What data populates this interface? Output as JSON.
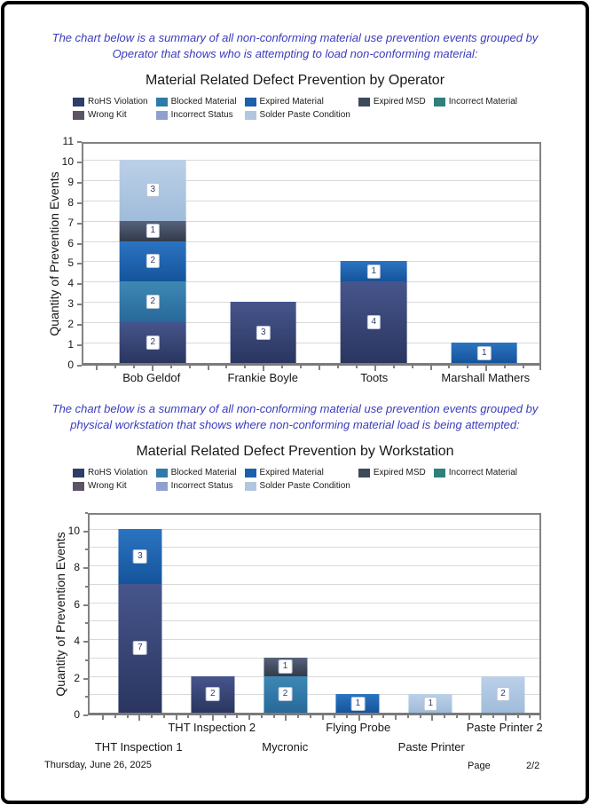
{
  "page": {
    "descriptions": [
      [
        "The chart below is a summary of all non-conforming material use prevention events grouped by",
        "Operator that shows who is attempting to load non-conforming material:"
      ],
      [
        "The chart below is a summary of all non-conforming material use prevention events grouped by",
        "physical workstation that shows where non-conforming material load is being attempted:"
      ]
    ],
    "footer": {
      "date": "Thursday, June 26, 2025",
      "page_label": "Page",
      "page_value": "2/2"
    }
  },
  "legend": [
    {
      "label": "RoHS Violation",
      "color": "#2E3D69"
    },
    {
      "label": "Blocked Material",
      "color": "#2E7AA8"
    },
    {
      "label": "Expired Material",
      "color": "#1C60AC"
    },
    {
      "label": "Expired MSD",
      "color": "#3E495B"
    },
    {
      "label": "Incorrect Material",
      "color": "#2F7F7D"
    },
    {
      "label": "Wrong Kit",
      "color": "#5C5365"
    },
    {
      "label": "Incorrect Status",
      "color": "#8F9FD0"
    },
    {
      "label": "Solder Paste Condition",
      "color": "#B2C6E0"
    }
  ],
  "series_colors": {
    "RoHS Violation": {
      "top": "#46558C",
      "bottom": "#2A3660"
    },
    "Blocked Material": {
      "top": "#3E88B5",
      "bottom": "#27699A"
    },
    "Expired Material": {
      "top": "#2B74C2",
      "bottom": "#15549B"
    },
    "Expired MSD": {
      "top": "#56627A",
      "bottom": "#333B4A"
    },
    "Incorrect Material": {
      "top": "#3A8D8A",
      "bottom": "#266B68"
    },
    "Wrong Kit": {
      "top": "#6A6175",
      "bottom": "#4D4556"
    },
    "Incorrect Status": {
      "top": "#9DACD8",
      "bottom": "#8090C2"
    },
    "Solder Paste Condition": {
      "top": "#BCD0E8",
      "bottom": "#9FBCDA"
    }
  },
  "chart_data": [
    {
      "type": "bar",
      "stacked": true,
      "title": "Material Related Defect Prevention by Operator",
      "ylabel": "Quantity of Prevention Events",
      "xlabel": "",
      "ylim": [
        0,
        11
      ],
      "ytick_label_step": 1,
      "grid": "horizontal, every 1 unit",
      "legend_position": "top",
      "categories": [
        "Bob Geldof",
        "Frankie Boyle",
        "Toots",
        "Marshall Mathers"
      ],
      "series": [
        {
          "name": "RoHS Violation",
          "values": [
            2,
            3,
            4,
            0
          ]
        },
        {
          "name": "Blocked Material",
          "values": [
            2,
            0,
            0,
            0
          ]
        },
        {
          "name": "Expired Material",
          "values": [
            2,
            0,
            1,
            1
          ]
        },
        {
          "name": "Expired MSD",
          "values": [
            1,
            0,
            0,
            0
          ]
        },
        {
          "name": "Solder Paste Condition",
          "values": [
            3,
            0,
            0,
            0
          ]
        }
      ],
      "totals": [
        10,
        3,
        5,
        1
      ],
      "stagger_labels": false
    },
    {
      "type": "bar",
      "stacked": true,
      "title": "Material Related Defect Prevention by Workstation",
      "ylabel": "Quantity of Prevention Events",
      "xlabel": "",
      "ylim": [
        0,
        11
      ],
      "ytick_label_step": 2,
      "grid": "horizontal, every 1 unit",
      "legend_position": "top",
      "categories": [
        "THT Inspection 1",
        "THT Inspection 2",
        "Mycronic",
        "Flying Probe",
        "Paste Printer",
        "Paste Printer 2"
      ],
      "series": [
        {
          "name": "RoHS Violation",
          "values": [
            7,
            2,
            0,
            0,
            0,
            0
          ]
        },
        {
          "name": "Blocked Material",
          "values": [
            0,
            0,
            2,
            0,
            0,
            0
          ]
        },
        {
          "name": "Expired Material",
          "values": [
            3,
            0,
            0,
            1,
            0,
            0
          ]
        },
        {
          "name": "Expired MSD",
          "values": [
            0,
            0,
            1,
            0,
            0,
            0
          ]
        },
        {
          "name": "Solder Paste Condition",
          "values": [
            0,
            0,
            0,
            0,
            1,
            2
          ]
        }
      ],
      "totals": [
        10,
        2,
        3,
        1,
        1,
        2
      ],
      "stagger_labels": true
    }
  ]
}
